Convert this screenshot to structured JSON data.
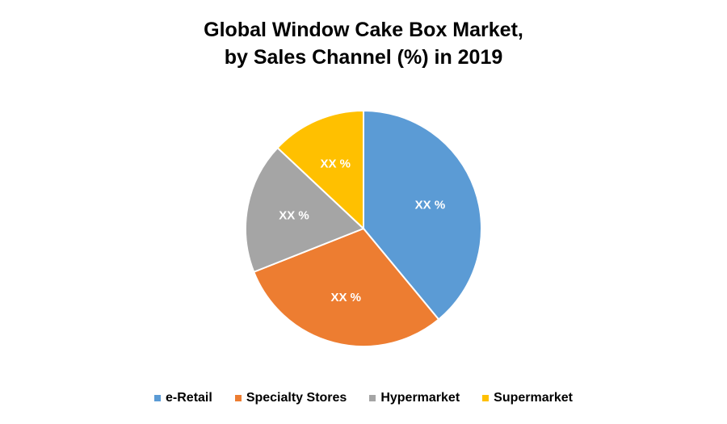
{
  "chart_data": {
    "type": "pie",
    "title_line1": "Global Window Cake Box Market,",
    "title_line2": "by Sales Channel (%) in 2019",
    "categories": [
      "e-Retail",
      "Specialty Stores",
      "Hypermarket",
      "Supermarket"
    ],
    "values": [
      39,
      30,
      18,
      13
    ],
    "data_labels": [
      "XX %",
      "XX %",
      "XX %",
      "XX %"
    ],
    "colors": [
      "#5B9BD5",
      "#ED7D31",
      "#A5A5A5",
      "#FFC000"
    ],
    "legend_position": "bottom"
  }
}
